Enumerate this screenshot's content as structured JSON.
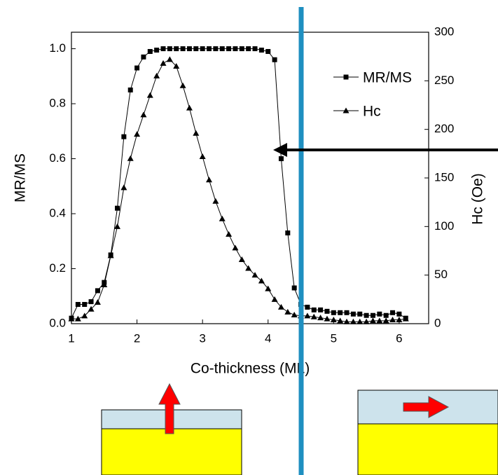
{
  "chart_data": {
    "type": "line",
    "x_label": "Co-thickness (ML)",
    "y_label": "MR/MS",
    "y2_label": "Hc (Oe)",
    "xlim": [
      1,
      6.45
    ],
    "xticks": [
      1,
      2,
      3,
      4,
      5,
      6
    ],
    "ylim": [
      0,
      1.06
    ],
    "yticks": [
      {
        "value": 0,
        "label": "0.0"
      },
      0.2,
      0.4,
      0.6,
      0.8,
      {
        "value": 1,
        "label": "1.0"
      }
    ],
    "y2lim": [
      0,
      300
    ],
    "y2ticks": [
      0,
      50,
      100,
      150,
      200,
      250,
      300
    ],
    "x": [
      1.0,
      1.1,
      1.2,
      1.3,
      1.4,
      1.5,
      1.6,
      1.7,
      1.8,
      1.9,
      2.0,
      2.1,
      2.2,
      2.3,
      2.4,
      2.5,
      2.6,
      2.7,
      2.8,
      2.9,
      3.0,
      3.1,
      3.2,
      3.3,
      3.4,
      3.5,
      3.6,
      3.7,
      3.8,
      3.9,
      4.0,
      4.1,
      4.2,
      4.3,
      4.4,
      4.5,
      4.6,
      4.7,
      4.8,
      4.9,
      5.0,
      5.1,
      5.2,
      5.3,
      5.4,
      5.5,
      5.6,
      5.7,
      5.8,
      5.9,
      6.0,
      6.1
    ],
    "series": [
      {
        "name": "MR/MS",
        "color": "#000000",
        "marker": "square",
        "values": [
          0.02,
          0.07,
          0.07,
          0.08,
          0.12,
          0.15,
          0.25,
          0.42,
          0.68,
          0.85,
          0.93,
          0.97,
          0.99,
          0.995,
          1.0,
          1.0,
          1.0,
          1.0,
          1.0,
          1.0,
          1.0,
          1.0,
          1.0,
          1.0,
          1.0,
          1.0,
          1.0,
          1.0,
          1.0,
          0.995,
          0.99,
          0.96,
          0.6,
          0.33,
          0.13,
          0.07,
          0.06,
          0.05,
          0.05,
          0.045,
          0.04,
          0.04,
          0.04,
          0.035,
          0.035,
          0.03,
          0.03,
          0.035,
          0.03,
          0.04,
          0.035,
          0.02
        ]
      },
      {
        "name": "Hc",
        "color": "#000000",
        "marker": "triangle",
        "axis": "y2",
        "values": [
          5,
          5,
          8,
          15,
          22,
          40,
          70,
          100,
          140,
          170,
          195,
          215,
          235,
          255,
          268,
          272,
          265,
          245,
          222,
          196,
          172,
          148,
          126,
          108,
          92,
          78,
          66,
          57,
          50,
          44,
          36,
          25,
          17,
          12,
          9,
          8,
          8,
          7,
          6,
          5,
          4,
          3,
          2,
          2,
          2,
          2,
          3,
          3,
          3,
          4,
          4,
          5
        ]
      }
    ]
  }
}
